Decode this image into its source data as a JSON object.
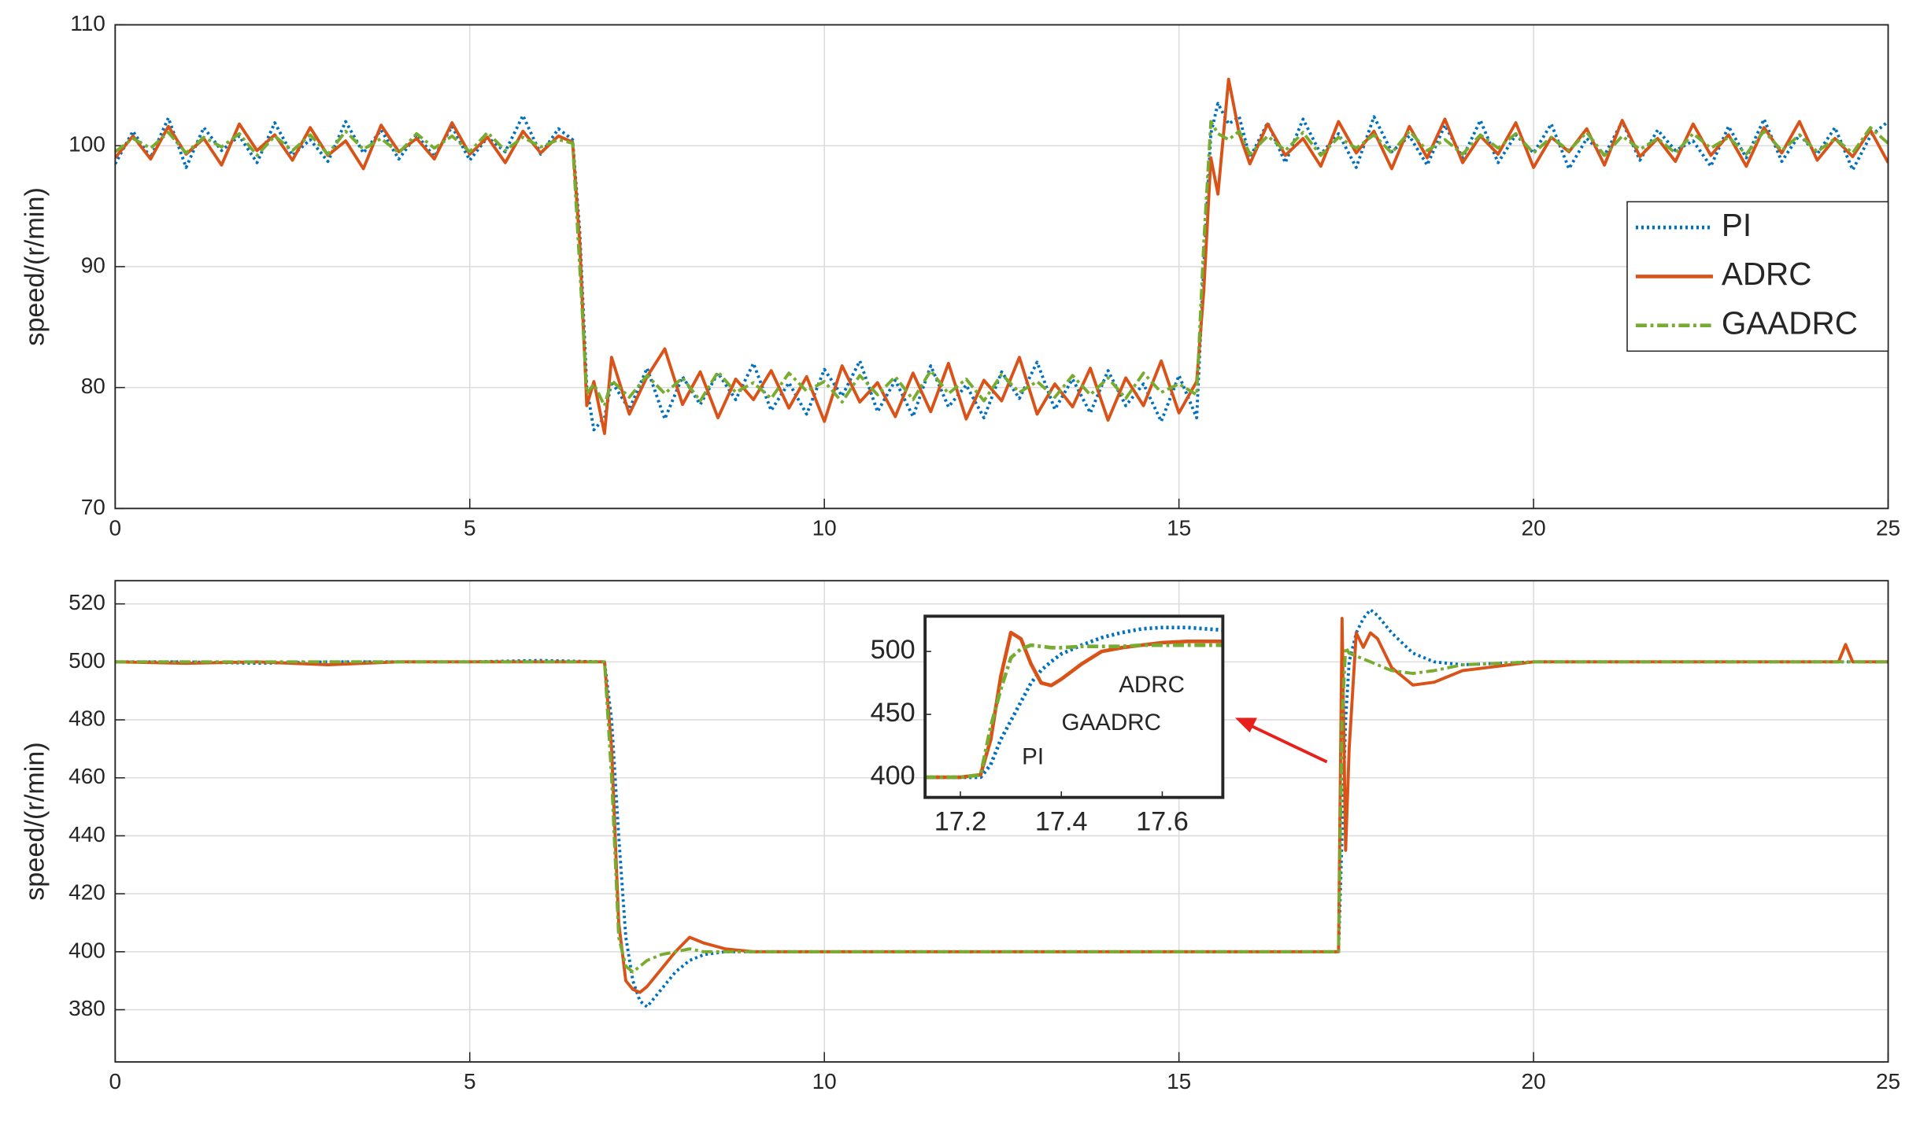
{
  "chart_data": [
    {
      "type": "line",
      "ylabel": "speed/(r/min)",
      "xlim": [
        0,
        25
      ],
      "ylim": [
        70,
        110
      ],
      "xticks": [
        0,
        5,
        10,
        15,
        20,
        25
      ],
      "yticks": [
        70,
        80,
        90,
        100,
        110
      ],
      "grid": true,
      "legend": "right",
      "x": [
        0,
        0.25,
        0.5,
        0.75,
        1,
        1.25,
        1.5,
        1.75,
        2,
        2.25,
        2.5,
        2.75,
        3,
        3.25,
        3.5,
        3.75,
        4,
        4.25,
        4.5,
        4.75,
        5,
        5.25,
        5.5,
        5.75,
        6,
        6.25,
        6.45,
        6.55,
        6.65,
        6.75,
        6.9,
        7,
        7.25,
        7.5,
        7.75,
        8,
        8.25,
        8.5,
        8.75,
        9,
        9.25,
        9.5,
        9.75,
        10,
        10.25,
        10.5,
        10.75,
        11,
        11.25,
        11.5,
        11.75,
        12,
        12.25,
        12.5,
        12.75,
        13,
        13.25,
        13.5,
        13.75,
        14,
        14.25,
        14.5,
        14.75,
        15,
        15.25,
        15.35,
        15.45,
        15.55,
        15.7,
        15.85,
        16,
        16.25,
        16.5,
        16.75,
        17,
        17.25,
        17.5,
        17.75,
        18,
        18.25,
        18.5,
        18.75,
        19,
        19.25,
        19.5,
        19.75,
        20,
        20.25,
        20.5,
        20.75,
        21,
        21.25,
        21.5,
        21.75,
        22,
        22.25,
        22.5,
        22.75,
        23,
        23.25,
        23.5,
        23.75,
        24,
        24.25,
        24.5,
        24.75,
        25
      ],
      "series": [
        {
          "name": "PI",
          "color": "#0072BD",
          "style": "dotted",
          "values": [
            98.5,
            101.2,
            99.0,
            102.3,
            98.2,
            101.5,
            99.6,
            100.8,
            98.6,
            101.9,
            99.2,
            100.5,
            98.7,
            102.0,
            99.4,
            101.3,
            98.9,
            100.9,
            99.1,
            101.6,
            98.8,
            100.7,
            99.5,
            102.5,
            99.3,
            101.4,
            100.5,
            93,
            80,
            76.5,
            77.5,
            80.5,
            78.2,
            81.6,
            77.4,
            80.9,
            78.6,
            81.2,
            79.0,
            82.0,
            78.1,
            80.4,
            77.8,
            81.5,
            79.3,
            82.2,
            78.0,
            80.6,
            77.6,
            81.8,
            78.4,
            80.2,
            77.5,
            81.3,
            79.1,
            82.1,
            78.2,
            80.7,
            77.9,
            81.4,
            78.5,
            80.3,
            77.2,
            81.0,
            77.5,
            90,
            101,
            103.5,
            101.8,
            102.4,
            99.0,
            101.9,
            98.6,
            102.2,
            99.3,
            101.0,
            98.2,
            102.4,
            99.5,
            100.8,
            98.4,
            101.7,
            99.0,
            102.1,
            98.6,
            100.9,
            99.4,
            101.8,
            98.1,
            100.6,
            99.2,
            102.0,
            98.8,
            101.3,
            99.6,
            100.4,
            98.3,
            101.6,
            99.0,
            102.2,
            98.7,
            100.9,
            99.3,
            101.5,
            98.0,
            100.8,
            102.0
          ]
        },
        {
          "name": "ADRC",
          "color": "#D95319",
          "style": "solid",
          "values": [
            99.0,
            100.8,
            98.9,
            101.6,
            99.3,
            100.6,
            98.4,
            101.8,
            99.6,
            100.9,
            98.8,
            101.5,
            99.2,
            100.4,
            98.1,
            101.7,
            99.5,
            100.6,
            98.9,
            101.9,
            99.3,
            100.7,
            98.6,
            101.2,
            99.4,
            100.8,
            100.3,
            92,
            78.5,
            80.5,
            76.2,
            82.5,
            77.8,
            80.9,
            83.2,
            78.6,
            81.3,
            77.5,
            80.7,
            79.0,
            81.4,
            78.3,
            80.9,
            77.2,
            81.8,
            78.8,
            80.4,
            77.6,
            81.2,
            78.0,
            82.0,
            77.4,
            80.6,
            78.9,
            82.5,
            77.8,
            80.3,
            78.4,
            81.6,
            77.3,
            80.8,
            78.5,
            82.2,
            77.9,
            80.5,
            88,
            99,
            96,
            105.5,
            101.0,
            98.5,
            101.8,
            99.2,
            100.6,
            98.3,
            102.0,
            99.4,
            101.2,
            98.1,
            101.6,
            99.0,
            102.2,
            98.6,
            100.8,
            99.3,
            101.9,
            98.2,
            100.7,
            99.5,
            101.4,
            98.4,
            102.1,
            99.1,
            100.6,
            98.7,
            101.8,
            99.2,
            100.9,
            98.3,
            101.5,
            99.4,
            102.0,
            98.8,
            100.6,
            99.1,
            101.3,
            98.6
          ]
        },
        {
          "name": "GAADRC",
          "color": "#77AC30",
          "style": "dashdot",
          "values": [
            99.5,
            100.6,
            99.8,
            101.1,
            99.4,
            100.7,
            99.9,
            101.0,
            99.2,
            100.8,
            99.6,
            100.9,
            99.3,
            101.2,
            99.7,
            100.6,
            99.4,
            101.0,
            99.8,
            100.8,
            99.5,
            101.1,
            99.6,
            100.7,
            99.9,
            100.5,
            100.2,
            90,
            79.5,
            80.3,
            78.5,
            80.6,
            79.2,
            81.0,
            79.5,
            80.8,
            78.9,
            81.3,
            79.6,
            80.4,
            79.1,
            81.2,
            79.7,
            80.5,
            78.8,
            81.0,
            79.4,
            80.9,
            79.0,
            81.4,
            79.5,
            80.7,
            78.9,
            81.1,
            79.6,
            80.5,
            79.2,
            81.0,
            79.4,
            80.8,
            79.1,
            81.2,
            79.6,
            80.3,
            79.4,
            92,
            102,
            101,
            100.5,
            101.2,
            99.3,
            100.8,
            99.6,
            101.1,
            99.2,
            100.7,
            99.8,
            100.9,
            99.4,
            101.2,
            99.6,
            100.5,
            99.3,
            100.9,
            99.8,
            101.0,
            99.4,
            100.7,
            99.6,
            101.1,
            99.2,
            100.8,
            99.7,
            100.6,
            99.4,
            101.0,
            99.8,
            100.7,
            99.3,
            101.2,
            99.6,
            100.9,
            99.5,
            100.6,
            99.4,
            101.5,
            100.2
          ]
        }
      ]
    },
    {
      "type": "line",
      "ylabel": "speed/(r/min)",
      "xlim": [
        0,
        25
      ],
      "ylim": [
        362,
        528
      ],
      "xticks": [
        0,
        5,
        10,
        15,
        20,
        25
      ],
      "yticks": [
        380,
        400,
        420,
        440,
        460,
        480,
        500,
        520
      ],
      "grid": true,
      "x": [
        0,
        1,
        2,
        3,
        4,
        5,
        6,
        6.9,
        7.0,
        7.1,
        7.2,
        7.3,
        7.4,
        7.5,
        7.7,
        7.9,
        8.1,
        8.3,
        8.6,
        9,
        10,
        11,
        12,
        13,
        14,
        15,
        16,
        17,
        17.25,
        17.3,
        17.35,
        17.4,
        17.5,
        17.6,
        17.7,
        17.8,
        18.0,
        18.3,
        18.6,
        19,
        20,
        21,
        22,
        23,
        24,
        24.3,
        24.4,
        24.5,
        25
      ],
      "series": [
        {
          "color": "#0072BD",
          "style": "dotted",
          "values": [
            500,
            500,
            499.5,
            500,
            500,
            500,
            500.5,
            500,
            480,
            440,
            405,
            390,
            383,
            381,
            387,
            393,
            397,
            399,
            400,
            400,
            400,
            400,
            400,
            400,
            400,
            400,
            400,
            400,
            400,
            440,
            480,
            500,
            510,
            515,
            518,
            516,
            510,
            503,
            500,
            499,
            500,
            500,
            500,
            500,
            500,
            500,
            500,
            500,
            500
          ]
        },
        {
          "color": "#D95319",
          "style": "solid",
          "values": [
            500,
            499.5,
            500,
            499,
            500,
            500,
            500,
            500,
            470,
            410,
            390,
            387,
            386,
            388,
            394,
            400,
            405,
            403,
            401,
            400,
            400,
            400,
            400,
            400,
            400,
            400,
            400,
            400,
            400,
            515,
            435,
            470,
            510,
            505,
            510,
            508,
            498,
            492,
            493,
            497,
            500,
            500,
            500,
            500,
            500,
            500,
            506,
            500,
            500
          ]
        },
        {
          "color": "#77AC30",
          "style": "dashdot",
          "values": [
            500,
            500,
            500,
            500,
            500,
            500,
            500,
            500,
            460,
            405,
            395,
            393,
            395,
            397,
            399,
            400,
            401,
            400,
            400,
            400,
            400,
            400,
            400,
            400,
            400,
            400,
            400,
            400,
            400,
            480,
            505,
            503,
            502,
            501,
            500,
            499,
            497,
            496,
            497,
            499,
            500,
            500,
            500,
            500,
            500,
            500,
            500,
            500,
            500
          ]
        }
      ]
    },
    {
      "type": "line",
      "xlim": [
        17.13,
        17.72
      ],
      "ylim": [
        384,
        528
      ],
      "xticks": [
        17.2,
        17.4,
        17.6
      ],
      "yticks": [
        400,
        450,
        500
      ],
      "grid": false,
      "annotations": [
        "ADRC",
        "GAADRC",
        "PI"
      ],
      "x": [
        17.13,
        17.2,
        17.24,
        17.26,
        17.28,
        17.3,
        17.32,
        17.34,
        17.36,
        17.38,
        17.4,
        17.44,
        17.48,
        17.52,
        17.56,
        17.6,
        17.65,
        17.72
      ],
      "series": [
        {
          "color": "#0072BD",
          "style": "dotted",
          "values": [
            400,
            400,
            400,
            410,
            430,
            445,
            460,
            475,
            485,
            492,
            498,
            505,
            511,
            515,
            518,
            519,
            519,
            517
          ]
        },
        {
          "color": "#D95319",
          "style": "solid",
          "values": [
            400,
            400,
            402,
            430,
            480,
            515,
            510,
            490,
            475,
            473,
            478,
            490,
            500,
            503,
            505,
            507,
            508,
            508
          ]
        },
        {
          "color": "#77AC30",
          "style": "dashdot",
          "values": [
            400,
            400,
            402,
            440,
            470,
            495,
            502,
            505,
            504,
            503,
            503,
            504,
            504,
            504,
            505,
            505,
            505,
            505
          ]
        }
      ]
    }
  ]
}
